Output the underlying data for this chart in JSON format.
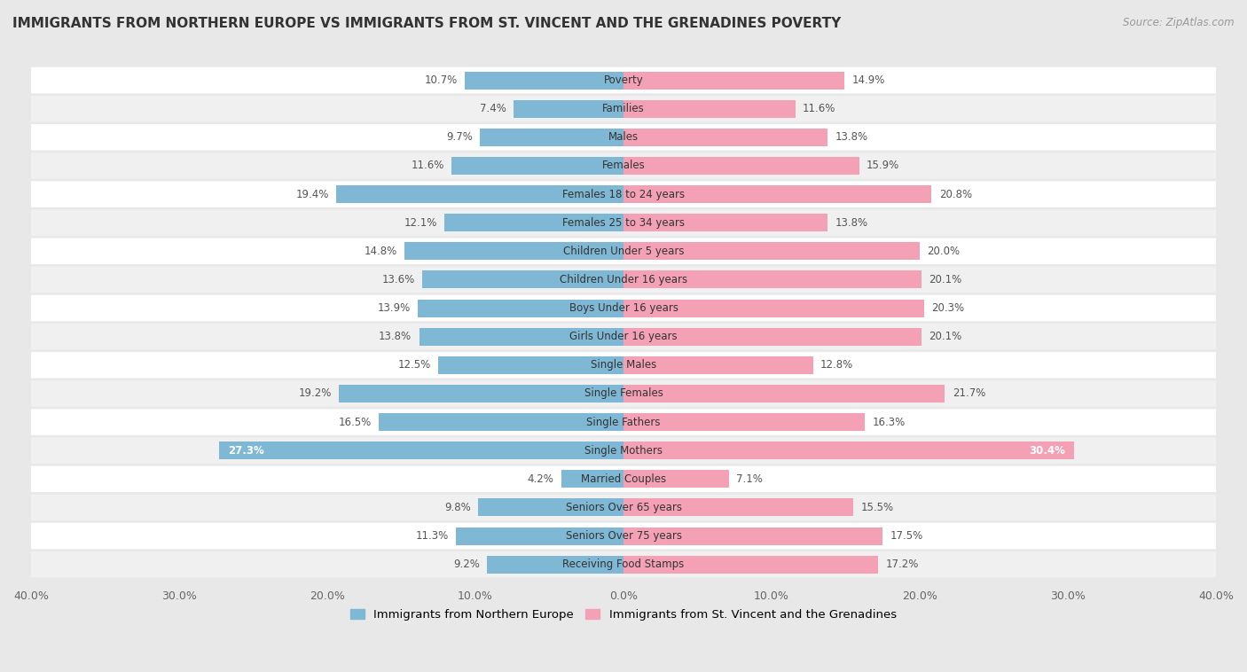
{
  "title": "IMMIGRANTS FROM NORTHERN EUROPE VS IMMIGRANTS FROM ST. VINCENT AND THE GRENADINES POVERTY",
  "source": "Source: ZipAtlas.com",
  "categories": [
    "Poverty",
    "Families",
    "Males",
    "Females",
    "Females 18 to 24 years",
    "Females 25 to 34 years",
    "Children Under 5 years",
    "Children Under 16 years",
    "Boys Under 16 years",
    "Girls Under 16 years",
    "Single Males",
    "Single Females",
    "Single Fathers",
    "Single Mothers",
    "Married Couples",
    "Seniors Over 65 years",
    "Seniors Over 75 years",
    "Receiving Food Stamps"
  ],
  "left_values": [
    10.7,
    7.4,
    9.7,
    11.6,
    19.4,
    12.1,
    14.8,
    13.6,
    13.9,
    13.8,
    12.5,
    19.2,
    16.5,
    27.3,
    4.2,
    9.8,
    11.3,
    9.2
  ],
  "right_values": [
    14.9,
    11.6,
    13.8,
    15.9,
    20.8,
    13.8,
    20.0,
    20.1,
    20.3,
    20.1,
    12.8,
    21.7,
    16.3,
    30.4,
    7.1,
    15.5,
    17.5,
    17.2
  ],
  "left_color": "#7eb8d4",
  "right_color": "#f4a0b5",
  "left_label": "Immigrants from Northern Europe",
  "right_label": "Immigrants from St. Vincent and the Grenadines",
  "xlim": 40.0,
  "fig_bg": "#e8e8e8",
  "row_bg_white": "#ffffff",
  "row_bg_gray": "#f0f0f0"
}
